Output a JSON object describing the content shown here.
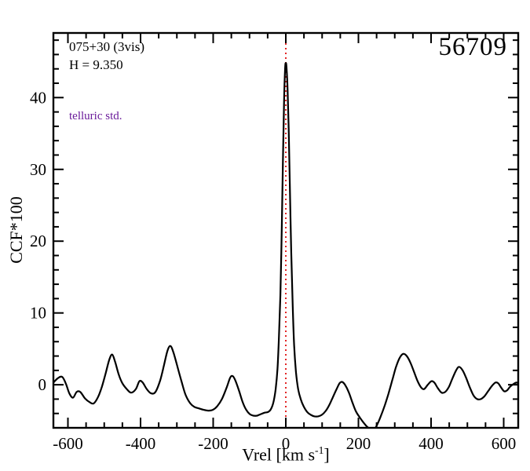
{
  "annotations": {
    "target_id": "075+30 (3vis)",
    "h_magnitude": "H = 9.350",
    "note": "telluric std.",
    "note_color": "#6a1b9a",
    "mjd": "56709"
  },
  "chart_data": {
    "type": "line",
    "title": "",
    "xlabel": "Vrel [km s-1]",
    "xlabel_parts": {
      "prefix": "Vrel [km s",
      "sup": "-1",
      "suffix": "]"
    },
    "ylabel": "CCF*100",
    "xlim": [
      -640,
      640
    ],
    "ylim": [
      -6,
      49
    ],
    "x_major_ticks": [
      -600,
      -400,
      -200,
      0,
      200,
      400,
      600
    ],
    "x_minor_step": 50,
    "y_major_ticks": [
      0,
      10,
      20,
      30,
      40
    ],
    "y_minor_step": 2,
    "grid": false,
    "legend": "none",
    "vline": {
      "x": 0,
      "color": "#dd0000",
      "style": "dotted"
    },
    "series": [
      {
        "name": "CCF",
        "color": "#000000",
        "points": [
          [
            -640,
            0.3
          ],
          [
            -628,
            0.9
          ],
          [
            -616,
            1.1
          ],
          [
            -606,
            0.2
          ],
          [
            -596,
            -1.2
          ],
          [
            -586,
            -1.8
          ],
          [
            -576,
            -1.0
          ],
          [
            -566,
            -1.0
          ],
          [
            -553,
            -1.9
          ],
          [
            -541,
            -2.4
          ],
          [
            -529,
            -2.6
          ],
          [
            -516,
            -1.6
          ],
          [
            -506,
            -0.2
          ],
          [
            -496,
            1.6
          ],
          [
            -486,
            3.5
          ],
          [
            -478,
            4.2
          ],
          [
            -470,
            3.2
          ],
          [
            -460,
            1.4
          ],
          [
            -450,
            0.2
          ],
          [
            -438,
            -0.6
          ],
          [
            -426,
            -1.1
          ],
          [
            -413,
            -0.6
          ],
          [
            -403,
            0.5
          ],
          [
            -394,
            0.3
          ],
          [
            -383,
            -0.6
          ],
          [
            -371,
            -1.2
          ],
          [
            -359,
            -1.0
          ],
          [
            -346,
            0.6
          ],
          [
            -336,
            2.6
          ],
          [
            -326,
            4.7
          ],
          [
            -318,
            5.4
          ],
          [
            -310,
            4.6
          ],
          [
            -300,
            2.8
          ],
          [
            -288,
            0.6
          ],
          [
            -276,
            -1.4
          ],
          [
            -263,
            -2.6
          ],
          [
            -251,
            -3.1
          ],
          [
            -239,
            -3.3
          ],
          [
            -226,
            -3.5
          ],
          [
            -213,
            -3.6
          ],
          [
            -201,
            -3.5
          ],
          [
            -189,
            -3.0
          ],
          [
            -176,
            -2.0
          ],
          [
            -163,
            -0.4
          ],
          [
            -153,
            1.0
          ],
          [
            -146,
            1.2
          ],
          [
            -139,
            0.6
          ],
          [
            -129,
            -0.8
          ],
          [
            -119,
            -2.4
          ],
          [
            -109,
            -3.5
          ],
          [
            -99,
            -4.1
          ],
          [
            -89,
            -4.3
          ],
          [
            -79,
            -4.3
          ],
          [
            -69,
            -4.1
          ],
          [
            -59,
            -3.9
          ],
          [
            -49,
            -3.8
          ],
          [
            -41,
            -3.4
          ],
          [
            -34,
            -2.4
          ],
          [
            -28,
            -0.6
          ],
          [
            -23,
            2.2
          ],
          [
            -19,
            6.5
          ],
          [
            -15,
            12.5
          ],
          [
            -11,
            22.0
          ],
          [
            -8,
            31.0
          ],
          [
            -5,
            39.0
          ],
          [
            -2,
            44.0
          ],
          [
            0,
            44.8
          ],
          [
            2,
            44.2
          ],
          [
            5,
            41.0
          ],
          [
            8,
            35.5
          ],
          [
            11,
            28.0
          ],
          [
            15,
            18.5
          ],
          [
            19,
            11.0
          ],
          [
            23,
            5.5
          ],
          [
            28,
            1.8
          ],
          [
            34,
            -0.6
          ],
          [
            41,
            -2.0
          ],
          [
            49,
            -3.0
          ],
          [
            59,
            -3.8
          ],
          [
            69,
            -4.2
          ],
          [
            79,
            -4.4
          ],
          [
            89,
            -4.4
          ],
          [
            99,
            -4.2
          ],
          [
            109,
            -3.7
          ],
          [
            119,
            -2.9
          ],
          [
            129,
            -1.8
          ],
          [
            139,
            -0.7
          ],
          [
            148,
            0.2
          ],
          [
            155,
            0.4
          ],
          [
            163,
            0.0
          ],
          [
            173,
            -1.0
          ],
          [
            183,
            -2.4
          ],
          [
            193,
            -3.7
          ],
          [
            203,
            -4.5
          ],
          [
            213,
            -5.2
          ],
          [
            223,
            -5.8
          ],
          [
            233,
            -6.2
          ],
          [
            243,
            -6.3
          ],
          [
            253,
            -5.4
          ],
          [
            263,
            -4.2
          ],
          [
            273,
            -2.8
          ],
          [
            283,
            -1.2
          ],
          [
            293,
            0.6
          ],
          [
            303,
            2.4
          ],
          [
            313,
            3.7
          ],
          [
            323,
            4.3
          ],
          [
            333,
            4.0
          ],
          [
            343,
            3.1
          ],
          [
            353,
            1.8
          ],
          [
            363,
            0.5
          ],
          [
            373,
            -0.4
          ],
          [
            381,
            -0.6
          ],
          [
            391,
            0.0
          ],
          [
            401,
            0.5
          ],
          [
            409,
            0.3
          ],
          [
            419,
            -0.5
          ],
          [
            429,
            -1.1
          ],
          [
            439,
            -1.0
          ],
          [
            449,
            -0.3
          ],
          [
            459,
            0.9
          ],
          [
            469,
            2.0
          ],
          [
            477,
            2.5
          ],
          [
            487,
            2.0
          ],
          [
            497,
            0.9
          ],
          [
            507,
            -0.4
          ],
          [
            517,
            -1.5
          ],
          [
            527,
            -2.0
          ],
          [
            537,
            -2.0
          ],
          [
            547,
            -1.6
          ],
          [
            557,
            -0.9
          ],
          [
            567,
            -0.2
          ],
          [
            577,
            0.3
          ],
          [
            585,
            0.2
          ],
          [
            593,
            -0.4
          ],
          [
            601,
            -0.9
          ],
          [
            609,
            -0.8
          ],
          [
            617,
            -0.3
          ],
          [
            627,
            0.1
          ],
          [
            635,
            0.3
          ],
          [
            640,
            0.2
          ]
        ]
      }
    ]
  }
}
